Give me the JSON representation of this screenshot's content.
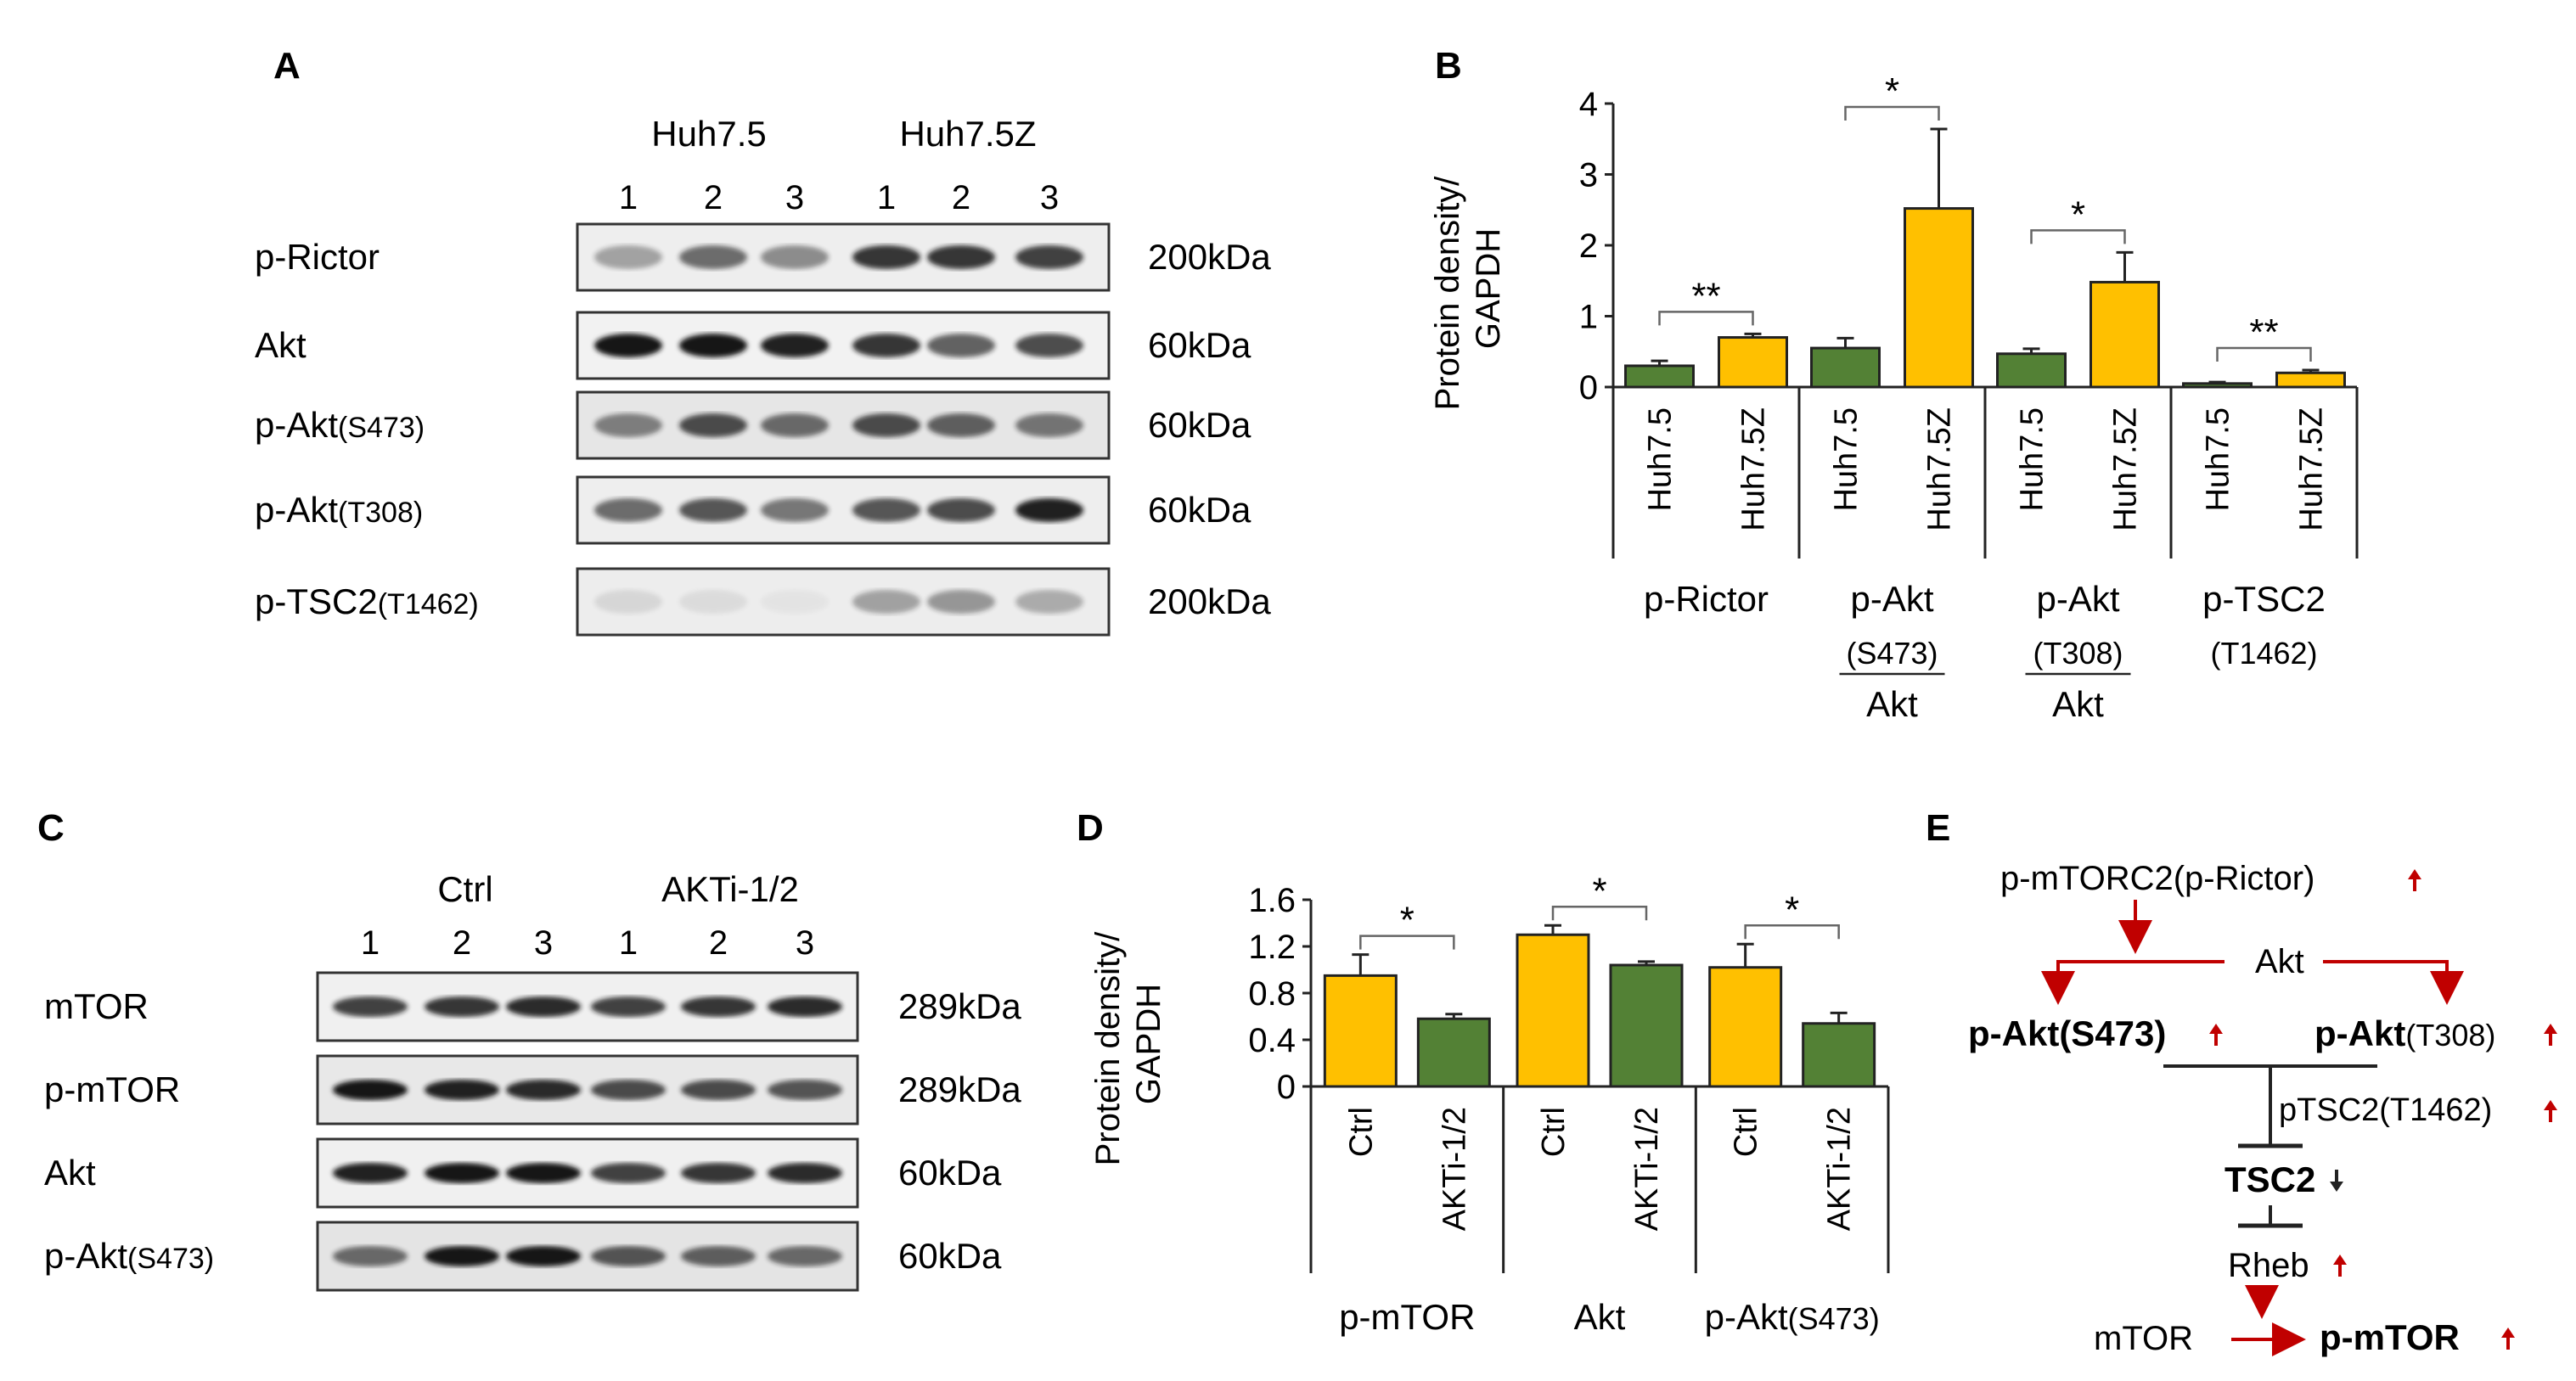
{
  "panels": {
    "A": {
      "letter": "A",
      "groups": [
        "Huh7.5",
        "Huh7.5Z"
      ],
      "lanes": [
        "1",
        "2",
        "3",
        "1",
        "2",
        "3"
      ],
      "blots": [
        {
          "label": "p-Rictor",
          "size": "200kDa"
        },
        {
          "label": "Akt",
          "size": "60kDa"
        },
        {
          "label": "p-Akt",
          "sub": "(S473)",
          "size": "60kDa"
        },
        {
          "label": "p-Akt",
          "sub": "(T308)",
          "size": "60kDa"
        },
        {
          "label": "p-TSC2",
          "sub": "(T1462)",
          "size": "200kDa"
        }
      ]
    },
    "B": {
      "letter": "B"
    },
    "C": {
      "letter": "C",
      "groups": [
        "Ctrl",
        "AKTi-1/2"
      ],
      "lanes": [
        "1",
        "2",
        "3",
        "1",
        "2",
        "3"
      ],
      "blots": [
        {
          "label": "mTOR",
          "size": "289kDa"
        },
        {
          "label": "p-mTOR",
          "size": "289kDa"
        },
        {
          "label": "Akt",
          "size": "60kDa"
        },
        {
          "label": "p-Akt",
          "sub": "(S473)",
          "size": "60kDa"
        }
      ]
    },
    "D": {
      "letter": "D"
    },
    "E": {
      "letter": "E",
      "nodes": {
        "mtorc2": "p-mTORC2(p-Rictor)",
        "akt": "Akt",
        "pakt_s473": "p-Akt(S473)",
        "pakt_t308_bold": "p-Akt",
        "pakt_t308_rest": "(T308)",
        "ptsc2": "pTSC2(T1462)",
        "tsc2": "TSC2",
        "rheb": "Rheb",
        "mtor": "mTOR",
        "pmtor": "p-mTOR"
      },
      "arrow_color": "#c00000"
    }
  },
  "chart_data": [
    {
      "panel": "B",
      "type": "bar",
      "ylabel": "Protein density/ GAPDH",
      "ylim": [
        0,
        4
      ],
      "yticks": [
        0,
        1,
        2,
        3,
        4
      ],
      "grid": false,
      "colors": {
        "Huh7.5": "#538135",
        "Huh7.5Z": "#ffc000"
      },
      "groups": [
        {
          "label_lines": [
            "p-Rictor"
          ],
          "bars": [
            {
              "label": "Huh7.5",
              "value": 0.3,
              "error": 0.07
            },
            {
              "label": "Huh7.5Z",
              "value": 0.7,
              "error": 0.05
            }
          ],
          "sig": "**"
        },
        {
          "label_lines": [
            "p-Akt",
            "(S473)",
            "Akt"
          ],
          "bars": [
            {
              "label": "Huh7.5",
              "value": 0.55,
              "error": 0.14
            },
            {
              "label": "Huh7.5Z",
              "value": 2.52,
              "error": 1.12
            }
          ],
          "sig": "*"
        },
        {
          "label_lines": [
            "p-Akt",
            "(T308)",
            "Akt"
          ],
          "bars": [
            {
              "label": "Huh7.5",
              "value": 0.47,
              "error": 0.07
            },
            {
              "label": "Huh7.5Z",
              "value": 1.48,
              "error": 0.42
            }
          ],
          "sig": "*"
        },
        {
          "label_lines": [
            "p-TSC2",
            "(T1462)"
          ],
          "bars": [
            {
              "label": "Huh7.5",
              "value": 0.05,
              "error": 0.02
            },
            {
              "label": "Huh7.5Z",
              "value": 0.2,
              "error": 0.04
            }
          ],
          "sig": "**"
        }
      ]
    },
    {
      "panel": "D",
      "type": "bar",
      "ylabel": "Protein density/ GAPDH",
      "ylim": [
        0,
        1.6
      ],
      "yticks": [
        0,
        0.4,
        0.8,
        1.2,
        1.6
      ],
      "ytick_labels": [
        "0",
        "0.4",
        "0.8",
        "1.2",
        "1.6"
      ],
      "grid": false,
      "colors": {
        "Ctrl": "#ffc000",
        "AKTi-1/2": "#538135"
      },
      "groups": [
        {
          "label": "p-mTOR",
          "bars": [
            {
              "label": "Ctrl",
              "value": 0.95,
              "error": 0.18
            },
            {
              "label": "AKTi-1/2",
              "value": 0.58,
              "error": 0.04
            }
          ],
          "sig": "*"
        },
        {
          "label": "Akt",
          "bars": [
            {
              "label": "Ctrl",
              "value": 1.3,
              "error": 0.08
            },
            {
              "label": "AKTi-1/2",
              "value": 1.04,
              "error": 0.03
            }
          ],
          "sig": "*"
        },
        {
          "label": "p-Akt",
          "label_sub": "(S473)",
          "bars": [
            {
              "label": "Ctrl",
              "value": 1.02,
              "error": 0.2
            },
            {
              "label": "AKTi-1/2",
              "value": 0.54,
              "error": 0.09
            }
          ],
          "sig": "*"
        }
      ]
    }
  ]
}
